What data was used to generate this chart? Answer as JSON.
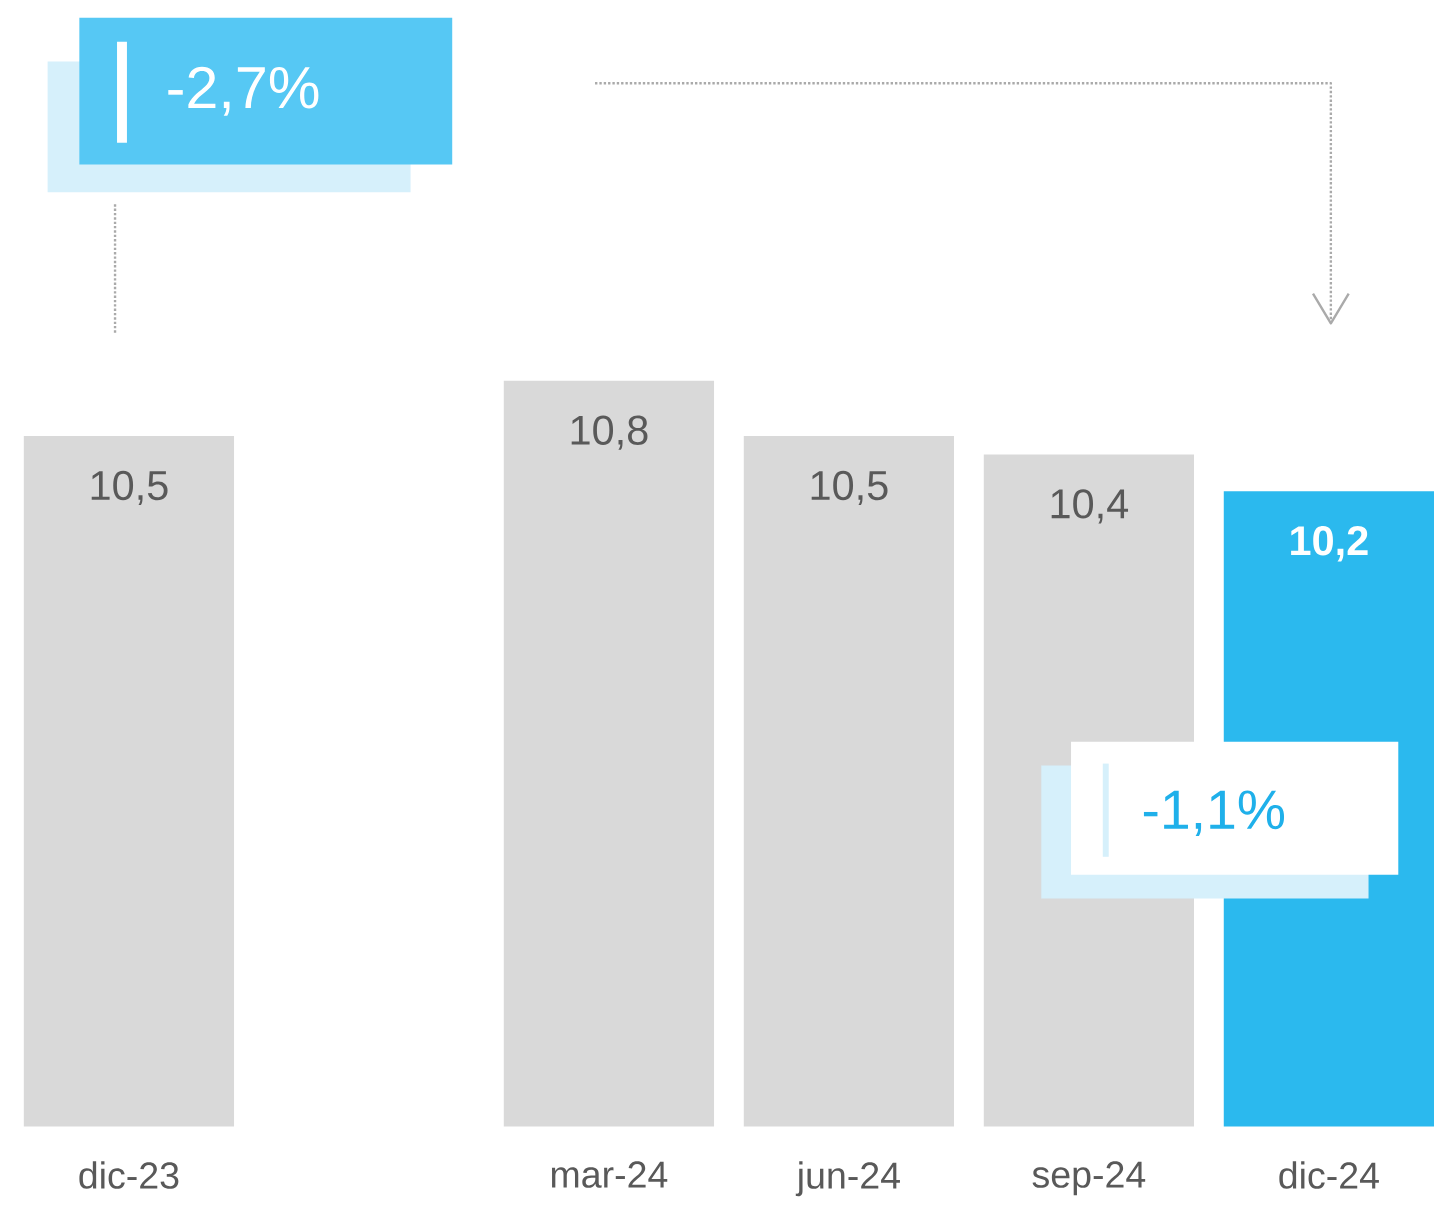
{
  "chart_data": {
    "type": "bar",
    "categories": [
      "dic-23",
      null,
      "mar-24",
      "jun-24",
      "sep-24",
      "dic-24"
    ],
    "values": [
      10.5,
      null,
      10.8,
      10.5,
      10.4,
      10.2
    ],
    "colors": [
      "#d9d9d9",
      "#d9d9d9",
      "#d9d9d9",
      "#d9d9d9",
      "#d9d9d9",
      "#2bb9ee"
    ],
    "value_labels": [
      "10,5",
      null,
      "10,8",
      "10,5",
      "10,4",
      "10,2"
    ],
    "ylim": [
      6.75,
      10.8
    ],
    "tick_labels": "x",
    "annotations": [
      "-2,7%",
      "-1,1%"
    ]
  }
}
